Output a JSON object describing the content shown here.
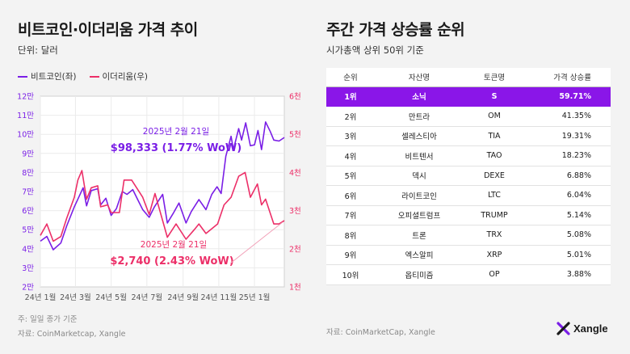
{
  "left": {
    "title": "비트코인·이더리움 가격 추이",
    "unit": "단위: 달러",
    "footnote": "주: 일일 종가 기준",
    "source": "자료: CoinMarketcap, Xangle"
  },
  "right": {
    "title": "주간 가격 상승률 순위",
    "subtitle": "시가총액 상위 50위 기준",
    "columns": [
      "순위",
      "자산명",
      "토큰명",
      "가격 상승률"
    ],
    "rows": [
      {
        "rank": "1위",
        "name": "소닉",
        "token": "S",
        "change": "59.71%"
      },
      {
        "rank": "2위",
        "name": "만트라",
        "token": "OM",
        "change": "41.35%"
      },
      {
        "rank": "3위",
        "name": "셀레스티아",
        "token": "TIA",
        "change": "19.31%"
      },
      {
        "rank": "4위",
        "name": "비트텐서",
        "token": "TAO",
        "change": "18.23%"
      },
      {
        "rank": "5위",
        "name": "덱시",
        "token": "DEXE",
        "change": "6.88%"
      },
      {
        "rank": "6위",
        "name": "라이트코인",
        "token": "LTC",
        "change": "6.04%"
      },
      {
        "rank": "7위",
        "name": "오피셜트럼프",
        "token": "TRUMP",
        "change": "5.14%"
      },
      {
        "rank": "8위",
        "name": "트론",
        "token": "TRX",
        "change": "5.08%"
      },
      {
        "rank": "9위",
        "name": "엑스알피",
        "token": "XRP",
        "change": "5.01%"
      },
      {
        "rank": "10위",
        "name": "옵티미즘",
        "token": "OP",
        "change": "3.88%"
      }
    ],
    "source": "자료: CoinMarketCap, Xangle"
  },
  "logo": {
    "text": "Xangle"
  },
  "colors": {
    "btc": "#7a1ee6",
    "eth": "#ec2f68",
    "highlight": "#8a16e8"
  },
  "chart_data": {
    "type": "line",
    "title": "비트코인·이더리움 가격 추이",
    "x_ticks": [
      "24년 1월",
      "24년 3월",
      "24년 5월",
      "24년 7월",
      "24년 9월",
      "24년 11월",
      "25년 1월"
    ],
    "left_axis": {
      "ticks": [
        "2만",
        "3만",
        "4만",
        "5만",
        "6만",
        "7만",
        "8만",
        "9만",
        "10만",
        "11만",
        "12만"
      ],
      "range": [
        20000,
        120000
      ]
    },
    "right_axis": {
      "ticks": [
        "1천",
        "2천",
        "3천",
        "4천",
        "5천",
        "6천"
      ],
      "range": [
        1000,
        6000
      ]
    },
    "x_range": [
      "2024-01-01",
      "2025-02-21"
    ],
    "grid": true,
    "legend_position": "top-left",
    "series": [
      {
        "name": "비트코인(좌)",
        "axis": "left",
        "points": [
          [
            "2024-01-01",
            44000
          ],
          [
            "2024-01-12",
            46500
          ],
          [
            "2024-01-23",
            39500
          ],
          [
            "2024-02-05",
            43000
          ],
          [
            "2024-02-15",
            52000
          ],
          [
            "2024-02-28",
            62000
          ],
          [
            "2024-03-05",
            66000
          ],
          [
            "2024-03-14",
            72000
          ],
          [
            "2024-03-20",
            62500
          ],
          [
            "2024-03-28",
            70500
          ],
          [
            "2024-04-08",
            71500
          ],
          [
            "2024-04-13",
            63000
          ],
          [
            "2024-04-22",
            66500
          ],
          [
            "2024-05-01",
            57500
          ],
          [
            "2024-05-10",
            61000
          ],
          [
            "2024-05-20",
            70000
          ],
          [
            "2024-05-28",
            68500
          ],
          [
            "2024-06-07",
            71000
          ],
          [
            "2024-06-15",
            66000
          ],
          [
            "2024-06-24",
            60500
          ],
          [
            "2024-07-05",
            56500
          ],
          [
            "2024-07-14",
            62000
          ],
          [
            "2024-07-28",
            68500
          ],
          [
            "2024-08-05",
            53500
          ],
          [
            "2024-08-15",
            58500
          ],
          [
            "2024-08-25",
            64000
          ],
          [
            "2024-09-06",
            53500
          ],
          [
            "2024-09-15",
            59500
          ],
          [
            "2024-09-28",
            65800
          ],
          [
            "2024-10-10",
            60500
          ],
          [
            "2024-10-20",
            68500
          ],
          [
            "2024-10-29",
            72500
          ],
          [
            "2024-11-05",
            69000
          ],
          [
            "2024-11-13",
            88500
          ],
          [
            "2024-11-22",
            99000
          ],
          [
            "2024-11-26",
            92000
          ],
          [
            "2024-12-05",
            103000
          ],
          [
            "2024-12-10",
            97000
          ],
          [
            "2024-12-17",
            106000
          ],
          [
            "2024-12-25",
            94000
          ],
          [
            "2025-01-01",
            94500
          ],
          [
            "2025-01-07",
            102000
          ],
          [
            "2025-01-13",
            92000
          ],
          [
            "2025-01-20",
            106500
          ],
          [
            "2025-01-28",
            101500
          ],
          [
            "2025-02-03",
            97000
          ],
          [
            "2025-02-12",
            96500
          ],
          [
            "2025-02-21",
            98333
          ]
        ]
      },
      {
        "name": "이더리움(우)",
        "axis": "right",
        "points": [
          [
            "2024-01-01",
            2350
          ],
          [
            "2024-01-12",
            2650
          ],
          [
            "2024-01-23",
            2200
          ],
          [
            "2024-02-05",
            2320
          ],
          [
            "2024-02-15",
            2800
          ],
          [
            "2024-02-28",
            3350
          ],
          [
            "2024-03-05",
            3800
          ],
          [
            "2024-03-12",
            4050
          ],
          [
            "2024-03-20",
            3300
          ],
          [
            "2024-03-28",
            3600
          ],
          [
            "2024-04-08",
            3650
          ],
          [
            "2024-04-13",
            3100
          ],
          [
            "2024-04-25",
            3150
          ],
          [
            "2024-05-01",
            2950
          ],
          [
            "2024-05-15",
            2950
          ],
          [
            "2024-05-23",
            3800
          ],
          [
            "2024-06-05",
            3800
          ],
          [
            "2024-06-24",
            3350
          ],
          [
            "2024-07-05",
            2900
          ],
          [
            "2024-07-15",
            3450
          ],
          [
            "2024-08-05",
            2300
          ],
          [
            "2024-08-20",
            2650
          ],
          [
            "2024-09-06",
            2250
          ],
          [
            "2024-09-20",
            2500
          ],
          [
            "2024-09-28",
            2650
          ],
          [
            "2024-10-10",
            2400
          ],
          [
            "2024-10-30",
            2650
          ],
          [
            "2024-11-10",
            3150
          ],
          [
            "2024-11-22",
            3350
          ],
          [
            "2024-12-05",
            3900
          ],
          [
            "2024-12-16",
            4000
          ],
          [
            "2024-12-25",
            3350
          ],
          [
            "2025-01-06",
            3700
          ],
          [
            "2025-01-13",
            3150
          ],
          [
            "2025-01-20",
            3300
          ],
          [
            "2025-02-03",
            2650
          ],
          [
            "2025-02-12",
            2650
          ],
          [
            "2025-02-21",
            2740
          ]
        ]
      }
    ],
    "annotations": [
      {
        "series": "비트코인(좌)",
        "date_label": "2025년 2월 21일",
        "value_label": "$98,333 (1.77% WoW)"
      },
      {
        "series": "이더리움(우)",
        "date_label": "2025년 2월 21일",
        "value_label": "$2,740 (2.43% WoW)"
      }
    ]
  }
}
